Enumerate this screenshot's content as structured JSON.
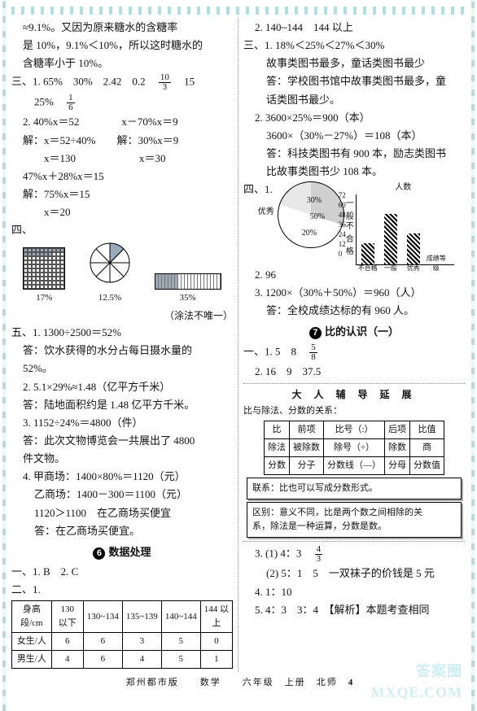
{
  "left": {
    "p1": "≈9.1%。又因为原来糖水的含糖率",
    "p2": "是 10%，9.1%＜10%，所以这时糖水的",
    "p3": "含糖率小于 10%。",
    "san1a": "三、1. 65%　30%　2.42　0.2　",
    "san1b": "　15",
    "san1c": "25%　",
    "san2": "2. 40%x＝52　　　　x－70%x＝9",
    "san2a": "解：x＝52÷40%　　解：30%x＝9",
    "san2b": "　　x＝130　　　　　　x＝30",
    "san2c": "47%x＋28%x＝15",
    "san2d": "解：75%x＝15",
    "san2e": "　　x＝20",
    "siLabel": "四、",
    "cap1": "17%",
    "cap2": "12.5%",
    "cap3": "35%",
    "tubu": "（涂法不唯一）",
    "wu1a": "五、1. 1300÷2500＝52%",
    "wu1b": "答：饮水获得的水分占每日摄水量的",
    "wu1c": "52%。",
    "wu2a": "2. 5.1×29%≈1.48（亿平方千米）",
    "wu2b": "答：陆地面积约是 1.48 亿平方千米。",
    "wu3a": "3. 1152÷24%＝4800（件）",
    "wu3b": "答：此次文物博览会一共展出了 4800",
    "wu3c": "件文物。",
    "wu4a": "4. 甲商场：1400×80%＝1120（元）",
    "wu4b": "乙商场：1400－300＝1100（元）",
    "wu4c": "1120＞1100　在乙商场买便宜",
    "wu4d": "答：在乙商场买便宜。",
    "sect6": "数据处理",
    "yi1": "一、1. B　2. C",
    "er": "二、1.",
    "thA": [
      "身高段/cm",
      "130 以下",
      "130~134",
      "135~139",
      "140~144",
      "144 以上"
    ],
    "thB": [
      "女生/人",
      "6",
      "6",
      "3",
      "5",
      "0"
    ],
    "thC": [
      "男生/人",
      "4",
      "6",
      "4",
      "5",
      "1"
    ]
  },
  "right": {
    "r1": "2. 140~144　144 以上",
    "san1": "三、1. 18%＜25%＜27%＜30%",
    "san1a": "故事类图书最多，童话类图书最少",
    "san1b": "答：学校图书馆中故事类图书最多，童",
    "san1bx": "话类图书最少。",
    "san2a": "2. 3600×25%＝900（本）",
    "san2b": "3600×（30%－27%）＝108（本）",
    "san2c": "答：科技类图书有 900 本，励志类图书",
    "san2d": "比故事类图书少 108 本。",
    "siLbl": "四、1.",
    "pie_seg": [
      {
        "label": "优秀",
        "pct": "30%"
      },
      {
        "label": "一般",
        "pct": "50%"
      },
      {
        "label": "不合格",
        "pct": "20%"
      }
    ],
    "chart_title": "人数",
    "chart_yticks": [
      "72",
      "60",
      "48",
      "36",
      "24",
      "12",
      "0"
    ],
    "chart_bars": [
      {
        "label": "不合格",
        "h": 26
      },
      {
        "label": "一般",
        "h": 62
      },
      {
        "label": "优秀",
        "h": 38
      },
      {
        "label": "成绩等级",
        "h": 0
      }
    ],
    "si2": "2. 96",
    "si3a": "3. 1200×（30%＋50%）＝960（人）",
    "si3b": "答：全校成绩达标的有 960 人。",
    "sect7": "比的认识（一）",
    "yi1": "一、1. 5　8　",
    "yi2": "2. 16　9　37.5",
    "sub": "大 人 辅 导 延 展",
    "boxTitle": "比与除法、分数的关系：",
    "tbl": {
      "r1": [
        "比",
        "前项",
        "比号（:）",
        "后项",
        "比值"
      ],
      "r2": [
        "除法",
        "被除数",
        "除号（÷）",
        "除数",
        "商"
      ],
      "r3": [
        "分数",
        "分子",
        "分数线（—）",
        "分母",
        "分数值"
      ]
    },
    "box2a": "联系：比也可以写成分数形式。",
    "box2b": "区别：意义不同，比是两个数之间相除的关",
    "box2c": "系，除法是一种运算，分数是数。",
    "q3a": "3. (1) 4：3　",
    "q3b": "(2) 5：1　5　一双袜子的价钱是 5 元",
    "q4": "4. 1：10",
    "q5": "5. 4：3　3：4　【解析】本题考查相同"
  },
  "footer": "郑州都市版　　数学　　六年级　上册　北师",
  "pagenum": "4",
  "wm1": "答案圈",
  "wm2": "MXQE.COM",
  "frac_10_3": {
    "n": "10",
    "d": "3"
  },
  "frac_1_6": {
    "n": "1",
    "d": "6"
  },
  "frac_5_8": {
    "n": "5",
    "d": "8"
  },
  "frac_4_3": {
    "n": "4",
    "d": "3"
  }
}
